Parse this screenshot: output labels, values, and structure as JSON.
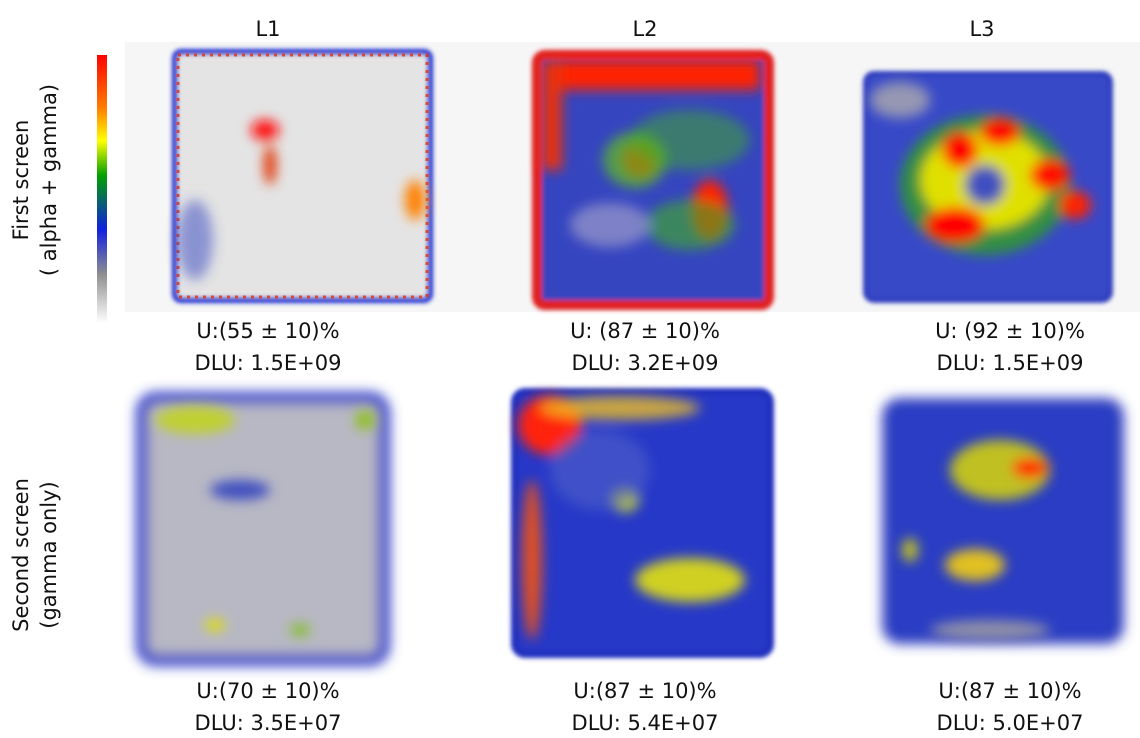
{
  "columns": [
    "L1",
    "L2",
    "L3"
  ],
  "rows": [
    {
      "label": [
        "First screen",
        "( alpha + gamma)"
      ],
      "panels": [
        {
          "u": "U:(55 ± 10)%",
          "dlu": "DLU: 1.5E+09"
        },
        {
          "u": "U: (87 ± 10)%",
          "dlu": "DLU: 3.2E+09"
        },
        {
          "u": "U: (92 ± 10)%",
          "dlu": "DLU: 1.5E+09"
        }
      ]
    },
    {
      "label": [
        "Second screen",
        "(gamma only)"
      ],
      "panels": [
        {
          "u": "U:(70 ± 10)%",
          "dlu": "DLU: 3.5E+07"
        },
        {
          "u": "U:(87 ± 10)%",
          "dlu": "DLU: 5.4E+07"
        },
        {
          "u": "U:(87 ± 10)%",
          "dlu": "DLU: 5.0E+07"
        }
      ]
    }
  ]
}
